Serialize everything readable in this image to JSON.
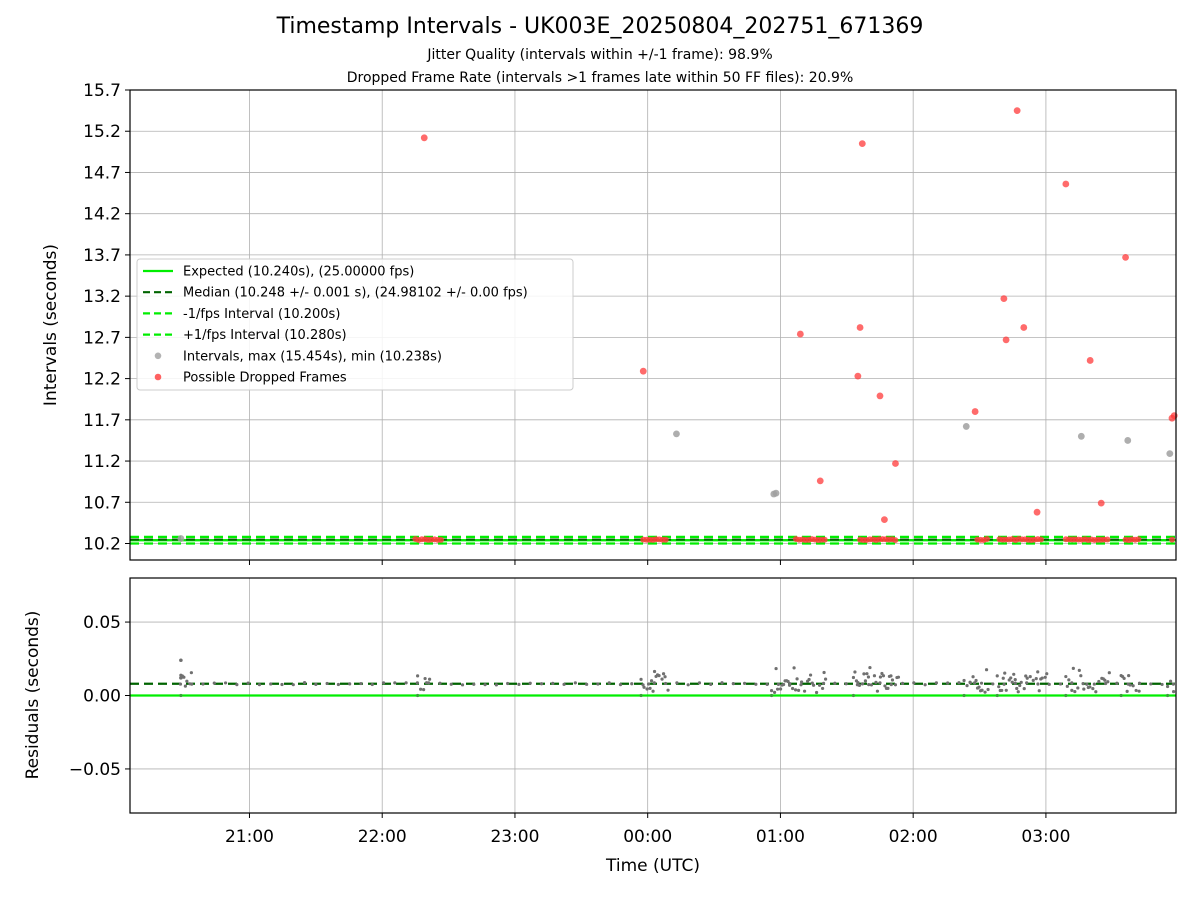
{
  "figure": {
    "title": "Timestamp Intervals - UK003E_20250804_202751_671369",
    "subtitle_1": "Jitter Quality (intervals within +/-1 frame): 98.9%",
    "subtitle_2": "Dropped Frame Rate (intervals >1 frames late within 50 FF files): 20.9%"
  },
  "chart_data": [
    {
      "type": "scatter",
      "xlabel": "",
      "ylabel": "Intervals (seconds)",
      "x_range": [
        "20:05",
        "03:58"
      ],
      "xlim_hours": [
        -3.9,
        3.98
      ],
      "ylim": [
        10.0,
        15.7
      ],
      "y_ticks": [
        10.2,
        10.7,
        11.2,
        11.7,
        12.2,
        12.7,
        13.2,
        13.7,
        14.2,
        14.7,
        15.2,
        15.7
      ],
      "x_ticks": [
        "21:00",
        "22:00",
        "23:00",
        "00:00",
        "01:00",
        "02:00",
        "03:00"
      ],
      "grid": true,
      "legend_position": "center-left",
      "reference_lines": [
        {
          "name": "Expected (10.240s), (25.00000 fps)",
          "y": 10.24,
          "style": "solid",
          "color": "#00ee00"
        },
        {
          "name": "Median (10.248 +/- 0.001 s), (24.98102 +/- 0.00 fps)",
          "y": 10.248,
          "style": "dashed",
          "color": "#006400"
        },
        {
          "name": "-1/fps Interval (10.200s)",
          "y": 10.2,
          "style": "dashed",
          "color": "#00ee00"
        },
        {
          "name": "+1/fps Interval (10.280s)",
          "y": 10.28,
          "style": "dashed",
          "color": "#00ee00"
        }
      ],
      "series": [
        {
          "name": "Intervals, max (15.454s), min (10.238s)",
          "color": "#a0a0a0",
          "points": [
            [
              "20:29",
              10.26
            ],
            [
              "00:13",
              11.53
            ],
            [
              "00:57",
              10.8
            ],
            [
              "00:58",
              10.81
            ],
            [
              "02:24",
              11.62
            ],
            [
              "03:16",
              11.5
            ],
            [
              "03:37",
              11.45
            ],
            [
              "03:56",
              11.29
            ]
          ]
        },
        {
          "name": "Possible Dropped Frames",
          "color": "#ff3a3a",
          "points": [
            [
              "22:19",
              15.12
            ],
            [
              "23:58",
              12.29
            ],
            [
              "01:09",
              12.74
            ],
            [
              "01:18",
              10.96
            ],
            [
              "01:35",
              12.23
            ],
            [
              "01:36",
              12.82
            ],
            [
              "01:37",
              15.05
            ],
            [
              "01:45",
              11.99
            ],
            [
              "01:47",
              10.49
            ],
            [
              "01:52",
              11.17
            ],
            [
              "02:28",
              11.8
            ],
            [
              "02:41",
              13.17
            ],
            [
              "02:42",
              12.67
            ],
            [
              "02:47",
              15.45
            ],
            [
              "02:50",
              12.82
            ],
            [
              "02:56",
              10.58
            ],
            [
              "03:09",
              14.56
            ],
            [
              "03:20",
              12.42
            ],
            [
              "03:25",
              10.69
            ],
            [
              "03:36",
              13.67
            ],
            [
              "03:57",
              11.72
            ],
            [
              "03:58",
              11.75
            ]
          ],
          "clusters_at_10_25": [
            [
              "22:15",
              "22:28"
            ],
            [
              "23:58",
              "00:09"
            ],
            [
              "01:07",
              "01:21"
            ],
            [
              "01:36",
              "01:53"
            ],
            [
              "02:29",
              "02:34"
            ],
            [
              "02:39",
              "02:59"
            ],
            [
              "03:09",
              "03:28"
            ],
            [
              "03:36",
              "03:43"
            ],
            [
              "03:57",
              "03:58"
            ]
          ]
        }
      ]
    },
    {
      "type": "scatter",
      "xlabel": "Time (UTC)",
      "ylabel": "Residuals (seconds)",
      "xlim_hours": [
        -3.9,
        3.98
      ],
      "ylim": [
        -0.08,
        0.08
      ],
      "y_ticks": [
        0.05,
        0.0,
        -0.05
      ],
      "y_tick_labels": [
        "0.05",
        "0.00",
        "−0.05"
      ],
      "x_ticks": [
        "21:00",
        "22:00",
        "23:00",
        "00:00",
        "01:00",
        "02:00",
        "03:00"
      ],
      "grid": true,
      "reference_lines": [
        {
          "y": 0.0,
          "style": "solid",
          "color": "#00ee00"
        },
        {
          "y": 0.008,
          "style": "dashed",
          "color": "#006400"
        }
      ],
      "series": [
        {
          "color": "#707070",
          "points": [
            [
              "20:29",
              0.024
            ],
            [
              "20:29",
              0.012
            ]
          ],
          "bursts": [
            [
              "20:29",
              "20:34"
            ],
            [
              "22:16",
              "22:22"
            ],
            [
              "23:57",
              "00:10"
            ],
            [
              "00:56",
              "01:21"
            ],
            [
              "01:33",
              "01:54"
            ],
            [
              "02:23",
              "02:35"
            ],
            [
              "02:38",
              "03:00"
            ],
            [
              "03:09",
              "03:28"
            ],
            [
              "03:34",
              "03:43"
            ],
            [
              "03:55",
              "03:58"
            ]
          ]
        }
      ]
    }
  ]
}
